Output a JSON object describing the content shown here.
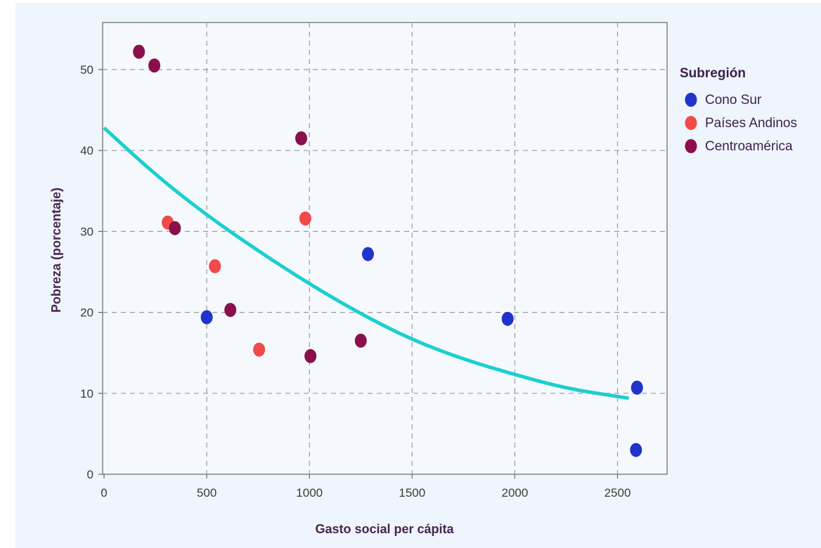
{
  "chart_data": {
    "type": "scatter",
    "title": "",
    "xlabel": "Gasto social per cápita",
    "ylabel": "Pobreza (porcentaje)",
    "xlim": [
      0,
      2750
    ],
    "ylim": [
      0,
      56
    ],
    "xticks": [
      0,
      500,
      1000,
      1500,
      2000,
      2500
    ],
    "yticks": [
      0,
      10,
      20,
      30,
      40,
      50
    ],
    "x_tick_labels": [
      "0",
      "500",
      "1000",
      "1500",
      "2000",
      "2500"
    ],
    "y_tick_labels": [
      "0",
      "10",
      "20",
      "30",
      "40",
      "50"
    ],
    "grid": true,
    "legend": {
      "title": "Subregión",
      "placement": "right"
    },
    "series": [
      {
        "name": "Cono Sur",
        "color": "#2233cc",
        "points": [
          {
            "x": 500,
            "y": 19.4
          },
          {
            "x": 1285,
            "y": 27.2
          },
          {
            "x": 1965,
            "y": 19.2
          },
          {
            "x": 2595,
            "y": 10.7
          },
          {
            "x": 2590,
            "y": 3.0
          }
        ]
      },
      {
        "name": "Países Andinos",
        "color": "#f04a4a",
        "points": [
          {
            "x": 310,
            "y": 31.1
          },
          {
            "x": 540,
            "y": 25.7
          },
          {
            "x": 980,
            "y": 31.6
          },
          {
            "x": 755,
            "y": 15.4
          }
        ]
      },
      {
        "name": "Centroamérica",
        "color": "#8a0f4a",
        "points": [
          {
            "x": 170,
            "y": 52.2
          },
          {
            "x": 245,
            "y": 50.5
          },
          {
            "x": 345,
            "y": 30.4
          },
          {
            "x": 960,
            "y": 41.5
          },
          {
            "x": 615,
            "y": 20.3
          },
          {
            "x": 1005,
            "y": 14.6
          },
          {
            "x": 1250,
            "y": 16.5
          }
        ]
      }
    ],
    "trend": {
      "color": "#1bcfcf",
      "points": [
        {
          "x": 0,
          "y": 42.8
        },
        {
          "x": 250,
          "y": 37.0
        },
        {
          "x": 500,
          "y": 32.0
        },
        {
          "x": 750,
          "y": 27.6
        },
        {
          "x": 1000,
          "y": 23.5
        },
        {
          "x": 1250,
          "y": 19.8
        },
        {
          "x": 1500,
          "y": 16.6
        },
        {
          "x": 1750,
          "y": 14.2
        },
        {
          "x": 2000,
          "y": 12.3
        },
        {
          "x": 2250,
          "y": 10.6
        },
        {
          "x": 2500,
          "y": 9.6
        },
        {
          "x": 2555,
          "y": 9.4
        }
      ]
    }
  }
}
